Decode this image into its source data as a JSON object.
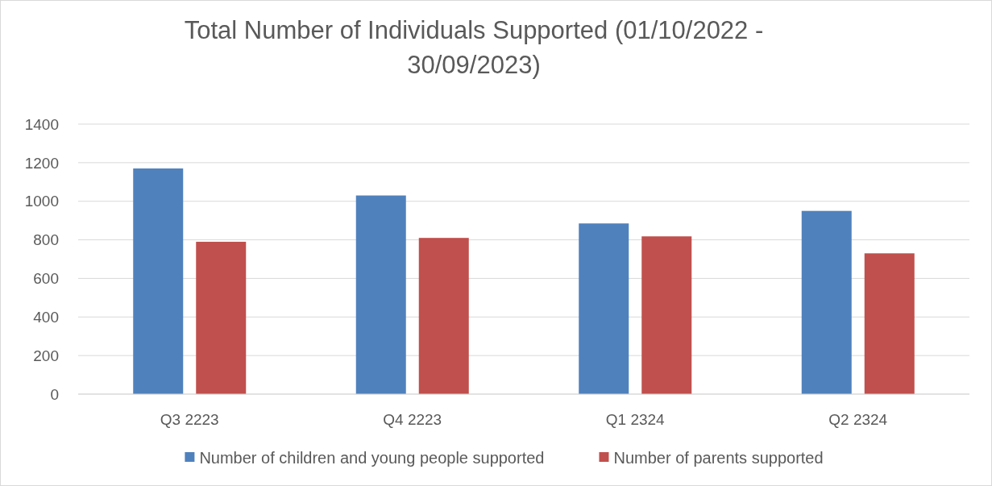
{
  "chart_data": {
    "type": "bar",
    "title": "Total Number of Individuals Supported (01/10/2022 - 30/09/2023)",
    "categories": [
      "Q3 2223",
      "Q4 2223",
      "Q1 2324",
      "Q2 2324"
    ],
    "series": [
      {
        "name": "Number of children and young people supported",
        "color": "#4f81bd",
        "values": [
          1170,
          1030,
          885,
          950
        ]
      },
      {
        "name": "Number of parents supported",
        "color": "#c0504d",
        "values": [
          790,
          810,
          818,
          730
        ]
      }
    ],
    "ylim": [
      0,
      1400
    ],
    "yticks": [
      0,
      200,
      400,
      600,
      800,
      1000,
      1200,
      1400
    ],
    "grid": "y",
    "legend": "bottom"
  }
}
